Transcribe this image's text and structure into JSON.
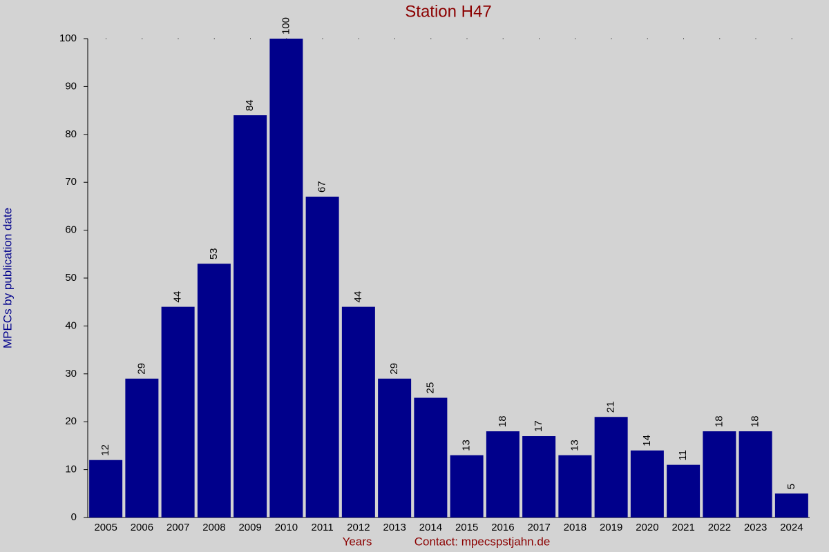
{
  "chart_data": {
    "type": "bar",
    "title": "Station H47",
    "x_label": "Years",
    "y_label": "MPECs by publication date",
    "contact": "Contact: mpecspstjahn.de",
    "categories": [
      "2005",
      "2006",
      "2007",
      "2008",
      "2009",
      "2010",
      "2011",
      "2012",
      "2013",
      "2014",
      "2015",
      "2016",
      "2017",
      "2018",
      "2019",
      "2020",
      "2021",
      "2022",
      "2023",
      "2024"
    ],
    "values": [
      12,
      29,
      44,
      53,
      84,
      100,
      67,
      44,
      29,
      25,
      13,
      18,
      17,
      13,
      21,
      14,
      11,
      18,
      18,
      5
    ],
    "color": "#00008b",
    "ylim": [
      0,
      100
    ],
    "yticks": [
      0,
      10,
      20,
      30,
      40,
      50,
      60,
      70,
      80,
      90,
      100
    ],
    "grid": false
  }
}
